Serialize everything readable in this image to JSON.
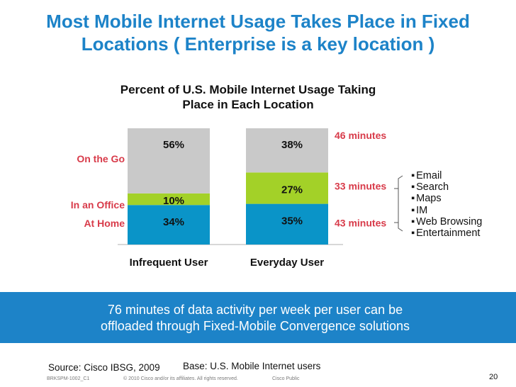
{
  "slide": {
    "title_line1": "Most Mobile Internet Usage Takes Place in Fixed",
    "title_line2": "Locations ( Enterprise is a key location )",
    "chart_title_line1": "Percent of U.S. Mobile Internet Usage Taking",
    "chart_title_line2": "Place in Each Location",
    "apps": [
      "Email",
      "Search",
      "Maps",
      "IM",
      "Web Browsing",
      "Entertainment"
    ],
    "band_line1": "76 minutes of data activity per week per user can be",
    "band_line2": "offloaded through Fixed-Mobile Convergence solutions",
    "source": "Source: Cisco IBSG, 2009",
    "base": "Base: U.S. Mobile Internet users",
    "footer_id": "BRKSPM-1002_C1",
    "footer_copyright": "© 2010 Cisco and/or its affiliates. All rights reserved.",
    "footer_public": "Cisco Public",
    "page_number": "20"
  },
  "chart_data": {
    "type": "bar",
    "stacked": true,
    "title": "Percent of U.S. Mobile Internet Usage Taking Place in Each Location",
    "categories": [
      "Infrequent User",
      "Everyday User"
    ],
    "series": [
      {
        "name": "At Home",
        "values": [
          34,
          35
        ],
        "labels": [
          "34%",
          "35%"
        ],
        "minutes": "43 minutes",
        "color": "#0a94c8"
      },
      {
        "name": "In an Office",
        "values": [
          10,
          27
        ],
        "labels": [
          "10%",
          "27%"
        ],
        "minutes": "33 minutes",
        "color": "#a3d128"
      },
      {
        "name": "On the Go",
        "values": [
          56,
          38
        ],
        "labels": [
          "56%",
          "38%"
        ],
        "minutes": "46 minutes",
        "color": "#c9c9c9"
      }
    ],
    "ylim": [
      0,
      100
    ],
    "colors": {
      "accent": "#1d83c8",
      "minutes": "#d83b4a"
    }
  }
}
